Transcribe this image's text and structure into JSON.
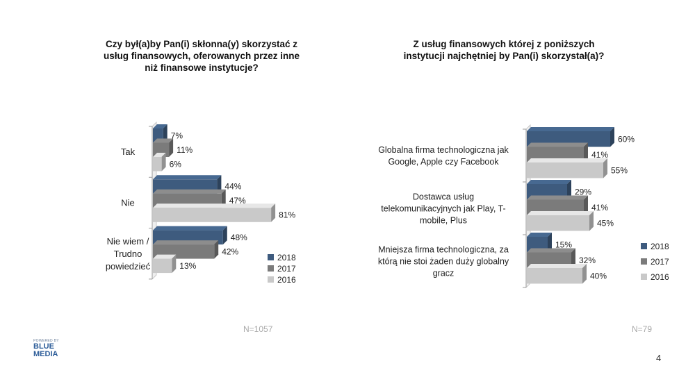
{
  "chart_data": [
    {
      "type": "bar",
      "orientation": "horizontal",
      "title": "Czy był(a)by Pan(i) skłonna(y) skorzystać z usług finansowych, oferowanych przez inne niż finansowe instytucje?",
      "categories": [
        "Tak",
        "Nie",
        "Nie wiem / Trudno powiedzieć"
      ],
      "series": [
        {
          "name": "2018",
          "values": [
            7,
            44,
            48
          ]
        },
        {
          "name": "2017",
          "values": [
            11,
            47,
            42
          ]
        },
        {
          "name": "2016",
          "values": [
            6,
            81,
            13
          ]
        }
      ],
      "unit": "%",
      "xlim": [
        0,
        100
      ],
      "legend_position": "bottom-right",
      "note": "N=1057"
    },
    {
      "type": "bar",
      "orientation": "horizontal",
      "title": "Z usług finansowych której z poniższych instytucji najchętniej by Pan(i) skorzystał(a)?",
      "categories": [
        "Globalna firma technologiczna jak Google, Apple czy Facebook",
        "Dostawca usług telekomunikacyjnych jak Play, T-mobile, Plus",
        "Mniejsza firma technologiczna, za którą nie stoi żaden duży globalny gracz"
      ],
      "series": [
        {
          "name": "2018",
          "values": [
            60,
            29,
            15
          ]
        },
        {
          "name": "2017",
          "values": [
            41,
            41,
            32
          ]
        },
        {
          "name": "2016",
          "values": [
            55,
            45,
            40
          ]
        }
      ],
      "unit": "%",
      "xlim": [
        0,
        100
      ],
      "legend_position": "bottom-right",
      "note": "N=79"
    }
  ],
  "colors": {
    "s2018": "#3e5b7e",
    "s2017": "#7b7b7b",
    "s2016": "#c9c9c9"
  },
  "left_title_lines": [
    "Czy był(a)by Pan(i) skłonna(y) skorzystać z",
    "usług finansowych, oferowanych przez inne",
    "niż finansowe instytucje?"
  ],
  "right_title_lines": [
    "Z usług finansowych której z poniższych",
    "instytucji najchętniej by Pan(i) skorzystał(a)?"
  ],
  "left_category_lines": [
    [
      "Tak"
    ],
    [
      "Nie"
    ],
    [
      "Nie wiem /",
      "Trudno",
      "powiedzieć"
    ]
  ],
  "right_category_lines": [
    [
      "Globalna firma technologiczna jak",
      "Google, Apple czy Facebook"
    ],
    [
      "Dostawca usług",
      "telekomunikacyjnych jak Play, T-",
      "mobile, Plus"
    ],
    [
      "Mniejsza firma technologiczna, za",
      "którą nie stoi żaden duży globalny",
      "gracz"
    ]
  ],
  "logo": {
    "small": "POWERED BY",
    "line1": "BLUE",
    "line2": "MEDIA"
  },
  "page_number": "4"
}
